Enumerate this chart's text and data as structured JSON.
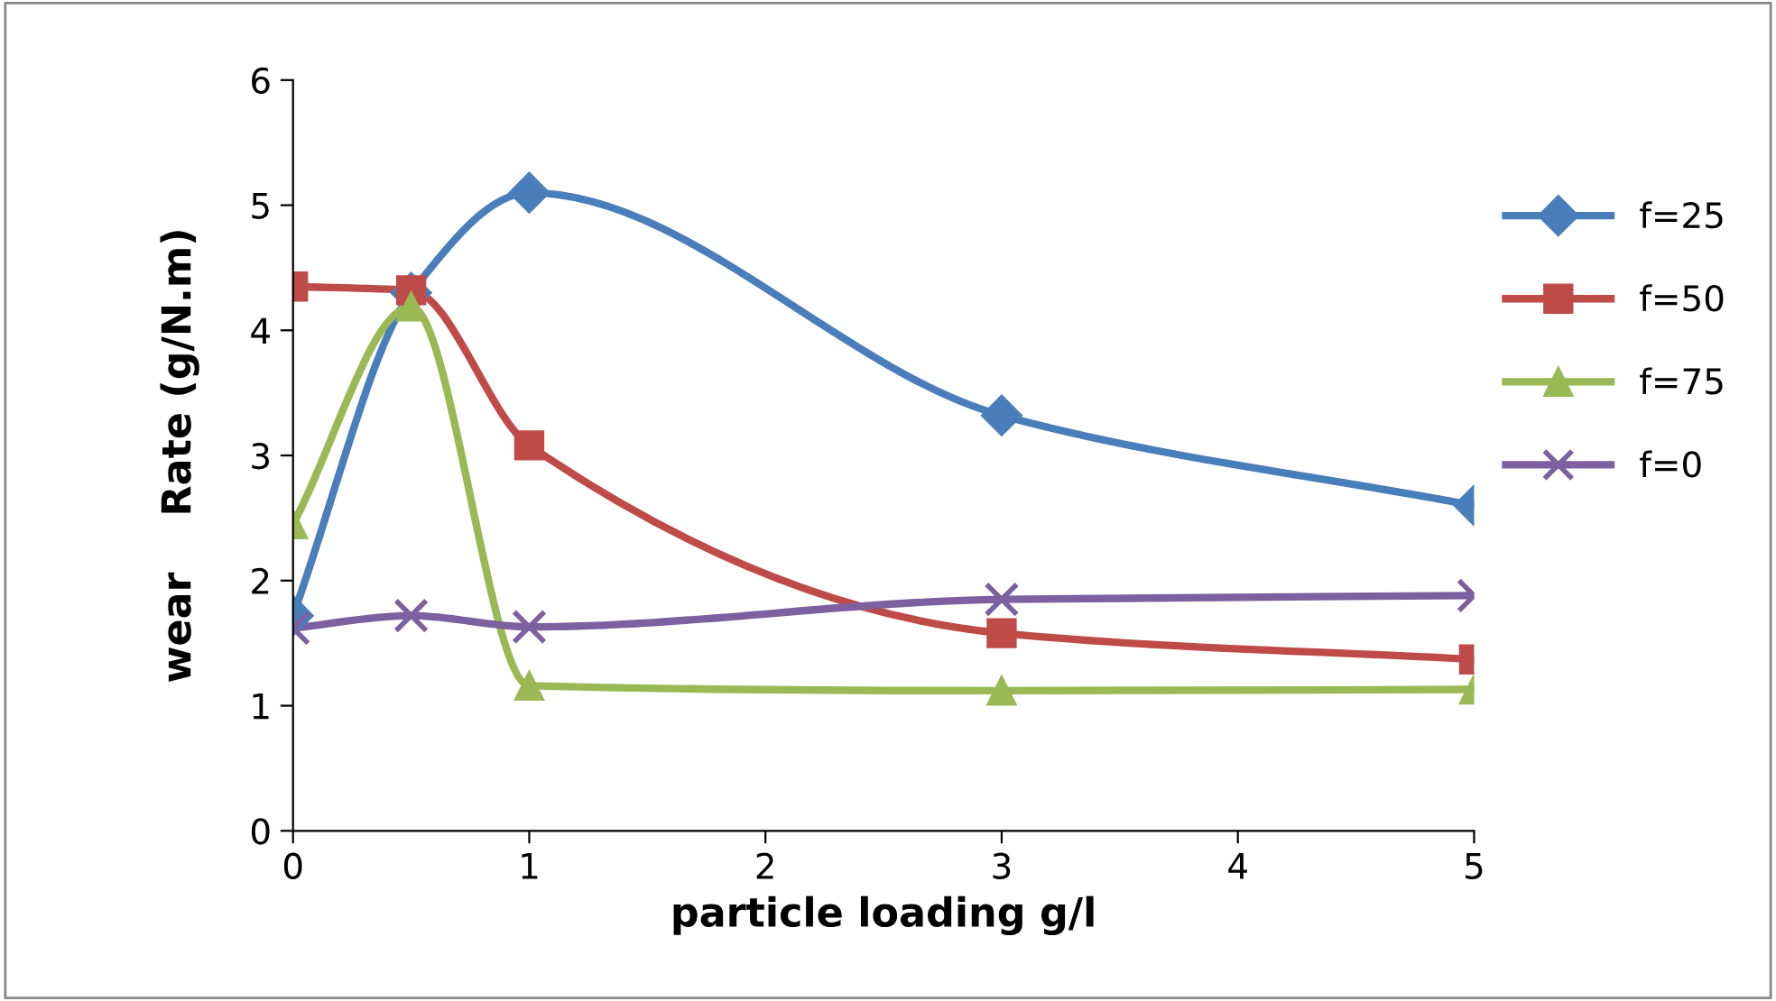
{
  "chart_data": {
    "type": "line",
    "xlabel": "particle loading g/l",
    "ylabel": "wear    Rate (g/N.m)",
    "x": [
      0,
      0.5,
      1,
      3,
      5
    ],
    "series": [
      {
        "name": "f=25",
        "color": "#4a7ebb",
        "marker": "diamond",
        "values": [
          1.72,
          4.3,
          5.1,
          3.32,
          2.6
        ]
      },
      {
        "name": "f=50",
        "color": "#be4b48",
        "marker": "square",
        "values": [
          4.35,
          4.32,
          3.08,
          1.58,
          1.37
        ]
      },
      {
        "name": "f=75",
        "color": "#98b954",
        "marker": "triangle",
        "values": [
          2.45,
          4.19,
          1.16,
          1.12,
          1.13
        ]
      },
      {
        "name": "f=0",
        "color": "#7d60a0",
        "marker": "cross",
        "values": [
          1.62,
          1.72,
          1.63,
          1.85,
          1.88
        ]
      }
    ],
    "xlim": [
      0,
      5
    ],
    "xticks": [
      0,
      1,
      2,
      3,
      4,
      5
    ],
    "ylim": [
      0,
      6
    ],
    "yticks": [
      0,
      1,
      2,
      3,
      4,
      5,
      6
    ],
    "grid": false,
    "legend": "right",
    "line_style": "solid"
  }
}
